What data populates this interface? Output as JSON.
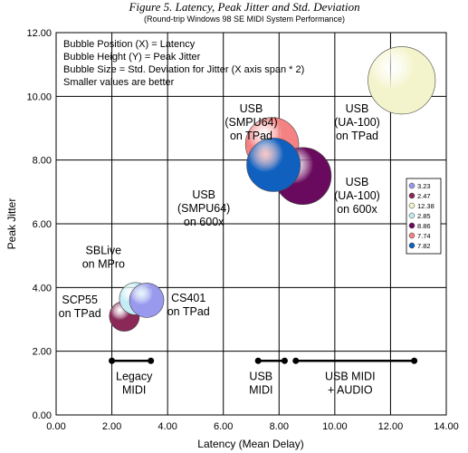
{
  "chart_data": {
    "type": "bubble",
    "title": "Figure 5.  Latency, Peak Jitter and Std. Deviation",
    "subtitle": "(Round-trip Windows 98 SE MIDI System Performance)",
    "xlabel": "Latency (Mean Delay)",
    "ylabel": "Peak Jitter",
    "xlim": [
      0,
      14
    ],
    "ylim": [
      0,
      12
    ],
    "x_ticks": [
      "0.00",
      "2.00",
      "4.00",
      "6.00",
      "8.00",
      "10.00",
      "12.00",
      "14.00"
    ],
    "y_ticks": [
      "0.00",
      "2.00",
      "4.00",
      "6.00",
      "8.00",
      "10.00",
      "12.00"
    ],
    "grid": true,
    "notes": [
      "Bubble Position (X) = Latency",
      "Bubble Height (Y) = Peak Jitter",
      "Bubble Size  = Std. Deviation for Jitter (X axis span * 2)",
      "Smaller values are better"
    ],
    "series": [
      {
        "name": "3.23",
        "x": 3.25,
        "y": 3.6,
        "size": 3.23,
        "color": "#9999ee"
      },
      {
        "name": "2.47",
        "x": 2.45,
        "y": 3.1,
        "size": 2.47,
        "color": "#8a2858"
      },
      {
        "name": "12.38",
        "x": 12.4,
        "y": 10.5,
        "size": 12.38,
        "color": "#f4f4cc"
      },
      {
        "name": "2.85",
        "x": 2.85,
        "y": 3.65,
        "size": 2.85,
        "color": "#c4ecf4"
      },
      {
        "name": "8.86",
        "x": 8.85,
        "y": 7.5,
        "size": 8.86,
        "color": "#6a0a5e"
      },
      {
        "name": "7.74",
        "x": 7.75,
        "y": 8.5,
        "size": 7.74,
        "color": "#f48282"
      },
      {
        "name": "7.82",
        "x": 7.8,
        "y": 7.85,
        "size": 7.82,
        "color": "#1060c0"
      }
    ],
    "annotations": [
      {
        "lines": [
          "USB",
          "(SMPU64)",
          "on TPad"
        ],
        "x": 7.0,
        "y": 9.5
      },
      {
        "lines": [
          "USB",
          "(UA-100)",
          "on TPad"
        ],
        "x": 10.8,
        "y": 9.5
      },
      {
        "lines": [
          "USB",
          "(SMPU64)",
          "on 600x"
        ],
        "x": 5.3,
        "y": 6.8
      },
      {
        "lines": [
          "USB",
          "(UA-100)",
          "on 600x"
        ],
        "x": 10.8,
        "y": 7.2
      },
      {
        "lines": [
          "SBLive",
          "on MPro"
        ],
        "x": 1.7,
        "y": 5.05
      },
      {
        "lines": [
          "SCP55",
          "on TPad"
        ],
        "x": 0.85,
        "y": 3.5
      },
      {
        "lines": [
          "CS401",
          "on TPad"
        ],
        "x": 4.75,
        "y": 3.55
      },
      {
        "lines": [
          "Legacy",
          "MIDI"
        ],
        "x": 2.8,
        "y": 1.1
      },
      {
        "lines": [
          "USB",
          "MIDI"
        ],
        "x": 7.35,
        "y": 1.1
      },
      {
        "lines": [
          "USB MIDI",
          "+ AUDIO"
        ],
        "x": 10.55,
        "y": 1.1
      }
    ],
    "ranges": [
      {
        "x1": 2.0,
        "x2": 3.4,
        "y": 1.7
      },
      {
        "x1": 7.25,
        "x2": 8.2,
        "y": 1.7
      },
      {
        "x1": 8.6,
        "x2": 12.85,
        "y": 1.7
      }
    ]
  }
}
